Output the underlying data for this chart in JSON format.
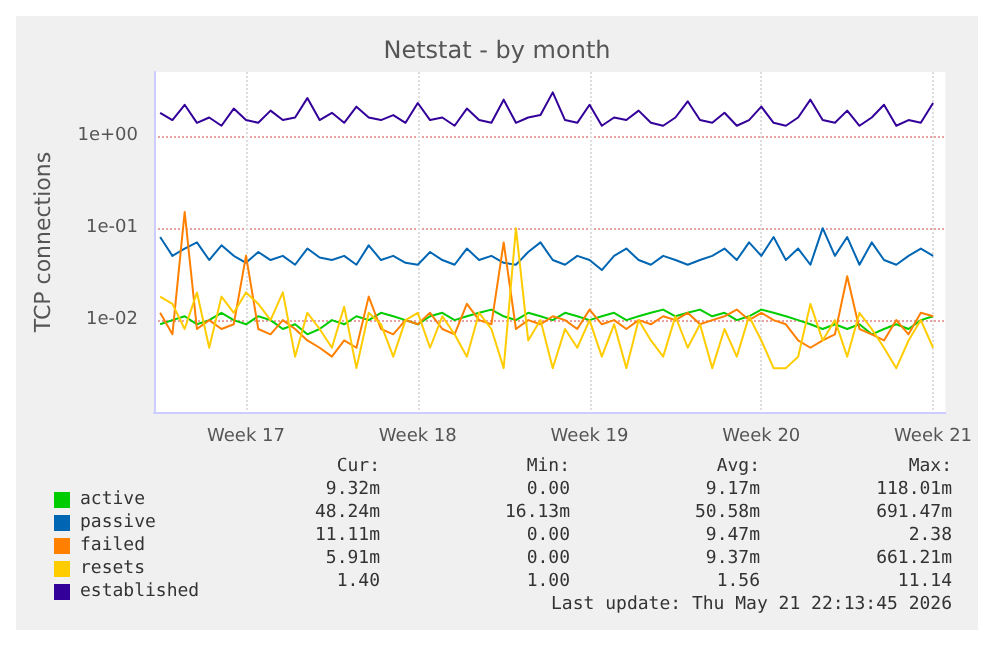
{
  "chart_data": {
    "type": "line",
    "title": "Netstat - by month",
    "ylabel": "TCP connections",
    "log": true,
    "grid": true,
    "legend": "bottom",
    "marker": "none",
    "line_style": "solid",
    "xlim": [
      "2026-04-19T18:00",
      "2026-05-22T00:00"
    ],
    "xticks": [
      {
        "value": "2026-04-23T12:00",
        "label": "Week 17"
      },
      {
        "value": "2026-04-30T12:00",
        "label": "Week 18"
      },
      {
        "value": "2026-05-07T12:00",
        "label": "Week 19"
      },
      {
        "value": "2026-05-14T12:00",
        "label": "Week 20"
      },
      {
        "value": "2026-05-21T12:00",
        "label": "Week 21"
      }
    ],
    "ylim": [
      0.001,
      5
    ],
    "yticks": [
      {
        "value": 0.01,
        "label": "1e-02"
      },
      {
        "value": 0.1,
        "label": "1e-01"
      },
      {
        "value": 1,
        "label": "1e+00"
      }
    ],
    "x": [
      "2026-04-20T00:00",
      "2026-04-20T12:00",
      "2026-04-21T00:00",
      "2026-04-21T12:00",
      "2026-04-22T00:00",
      "2026-04-22T12:00",
      "2026-04-23T00:00",
      "2026-04-23T12:00",
      "2026-04-24T00:00",
      "2026-04-24T12:00",
      "2026-04-25T00:00",
      "2026-04-25T12:00",
      "2026-04-26T00:00",
      "2026-04-26T12:00",
      "2026-04-27T00:00",
      "2026-04-27T12:00",
      "2026-04-28T00:00",
      "2026-04-28T12:00",
      "2026-04-29T00:00",
      "2026-04-29T12:00",
      "2026-04-30T00:00",
      "2026-04-30T12:00",
      "2026-05-01T00:00",
      "2026-05-01T12:00",
      "2026-05-02T00:00",
      "2026-05-02T12:00",
      "2026-05-03T00:00",
      "2026-05-03T12:00",
      "2026-05-04T00:00",
      "2026-05-04T12:00",
      "2026-05-05T00:00",
      "2026-05-05T12:00",
      "2026-05-06T00:00",
      "2026-05-06T12:00",
      "2026-05-07T00:00",
      "2026-05-07T12:00",
      "2026-05-08T00:00",
      "2026-05-08T12:00",
      "2026-05-09T00:00",
      "2026-05-09T12:00",
      "2026-05-10T00:00",
      "2026-05-10T12:00",
      "2026-05-11T00:00",
      "2026-05-11T12:00",
      "2026-05-12T00:00",
      "2026-05-12T12:00",
      "2026-05-13T00:00",
      "2026-05-13T12:00",
      "2026-05-14T00:00",
      "2026-05-14T12:00",
      "2026-05-15T00:00",
      "2026-05-15T12:00",
      "2026-05-16T00:00",
      "2026-05-16T12:00",
      "2026-05-17T00:00",
      "2026-05-17T12:00",
      "2026-05-18T00:00",
      "2026-05-18T12:00",
      "2026-05-19T00:00",
      "2026-05-19T12:00",
      "2026-05-20T00:00",
      "2026-05-20T12:00",
      "2026-05-21T00:00",
      "2026-05-21T12:00"
    ],
    "series": [
      {
        "name": "active",
        "color": "#00cc00",
        "values": [
          0.009,
          0.01,
          0.011,
          0.009,
          0.01,
          0.012,
          0.01,
          0.009,
          0.011,
          0.01,
          0.008,
          0.009,
          0.007,
          0.008,
          0.01,
          0.009,
          0.011,
          0.01,
          0.012,
          0.011,
          0.01,
          0.009,
          0.011,
          0.012,
          0.01,
          0.011,
          0.012,
          0.013,
          0.011,
          0.01,
          0.012,
          0.011,
          0.01,
          0.012,
          0.011,
          0.01,
          0.011,
          0.012,
          0.01,
          0.011,
          0.012,
          0.013,
          0.011,
          0.012,
          0.013,
          0.011,
          0.012,
          0.01,
          0.011,
          0.013,
          0.012,
          0.011,
          0.01,
          0.009,
          0.008,
          0.009,
          0.008,
          0.009,
          0.007,
          0.008,
          0.009,
          0.008,
          0.01,
          0.011
        ]
      },
      {
        "name": "passive",
        "color": "#0066b3",
        "values": [
          0.08,
          0.05,
          0.06,
          0.07,
          0.045,
          0.065,
          0.05,
          0.042,
          0.055,
          0.045,
          0.05,
          0.04,
          0.06,
          0.048,
          0.045,
          0.05,
          0.04,
          0.065,
          0.045,
          0.05,
          0.042,
          0.04,
          0.055,
          0.045,
          0.04,
          0.06,
          0.045,
          0.05,
          0.042,
          0.04,
          0.055,
          0.07,
          0.045,
          0.04,
          0.05,
          0.045,
          0.035,
          0.05,
          0.06,
          0.045,
          0.04,
          0.05,
          0.045,
          0.04,
          0.045,
          0.05,
          0.06,
          0.045,
          0.07,
          0.05,
          0.08,
          0.045,
          0.06,
          0.04,
          0.1,
          0.05,
          0.08,
          0.04,
          0.07,
          0.045,
          0.04,
          0.05,
          0.06,
          0.05
        ]
      },
      {
        "name": "failed",
        "color": "#ff8000",
        "values": [
          0.012,
          0.007,
          0.15,
          0.008,
          0.01,
          0.008,
          0.009,
          0.05,
          0.008,
          0.007,
          0.01,
          0.008,
          0.006,
          0.005,
          0.004,
          0.006,
          0.005,
          0.018,
          0.008,
          0.007,
          0.01,
          0.009,
          0.012,
          0.008,
          0.007,
          0.015,
          0.01,
          0.009,
          0.07,
          0.008,
          0.01,
          0.009,
          0.011,
          0.01,
          0.008,
          0.013,
          0.009,
          0.01,
          0.008,
          0.01,
          0.009,
          0.011,
          0.01,
          0.012,
          0.009,
          0.01,
          0.011,
          0.013,
          0.01,
          0.012,
          0.01,
          0.009,
          0.006,
          0.005,
          0.006,
          0.007,
          0.03,
          0.008,
          0.007,
          0.006,
          0.01,
          0.007,
          0.012,
          0.011
        ]
      },
      {
        "name": "resets",
        "color": "#ffcc00",
        "values": [
          0.018,
          0.015,
          0.008,
          0.02,
          0.005,
          0.018,
          0.012,
          0.02,
          0.015,
          0.01,
          0.02,
          0.004,
          0.012,
          0.008,
          0.005,
          0.014,
          0.003,
          0.012,
          0.009,
          0.004,
          0.01,
          0.012,
          0.005,
          0.011,
          0.007,
          0.004,
          0.012,
          0.008,
          0.003,
          0.1,
          0.006,
          0.01,
          0.003,
          0.008,
          0.005,
          0.01,
          0.004,
          0.009,
          0.003,
          0.01,
          0.006,
          0.004,
          0.011,
          0.005,
          0.009,
          0.003,
          0.008,
          0.004,
          0.011,
          0.006,
          0.003,
          0.003,
          0.004,
          0.015,
          0.006,
          0.01,
          0.004,
          0.012,
          0.008,
          0.005,
          0.003,
          0.006,
          0.01,
          0.005
        ]
      },
      {
        "name": "established",
        "color": "#330099",
        "values": [
          1.8,
          1.5,
          2.2,
          1.4,
          1.6,
          1.3,
          2.0,
          1.5,
          1.4,
          1.9,
          1.5,
          1.6,
          2.6,
          1.5,
          1.8,
          1.4,
          2.1,
          1.6,
          1.5,
          1.7,
          1.4,
          2.3,
          1.5,
          1.6,
          1.3,
          2.0,
          1.5,
          1.4,
          2.5,
          1.4,
          1.6,
          1.7,
          3.0,
          1.5,
          1.4,
          2.2,
          1.3,
          1.6,
          1.5,
          1.9,
          1.4,
          1.3,
          1.6,
          2.4,
          1.5,
          1.4,
          1.8,
          1.3,
          1.5,
          2.1,
          1.4,
          1.3,
          1.6,
          2.5,
          1.5,
          1.4,
          1.9,
          1.3,
          1.6,
          2.2,
          1.3,
          1.5,
          1.4,
          2.3
        ]
      }
    ],
    "annotations": [
      "Cur:",
      "Min:",
      "Avg:",
      "Max:",
      "9.32m",
      "0.00",
      "9.17m",
      "118.01m",
      "48.24m",
      "16.13m",
      "50.58m",
      "691.47m",
      "11.11m",
      "0.00",
      "9.47m",
      "2.38",
      "5.91m",
      "0.00",
      "9.37m",
      "661.21m",
      "1.40",
      "1.00",
      "1.56",
      "11.14",
      "Last update: Thu May 21 22:13:45 2026"
    ]
  }
}
